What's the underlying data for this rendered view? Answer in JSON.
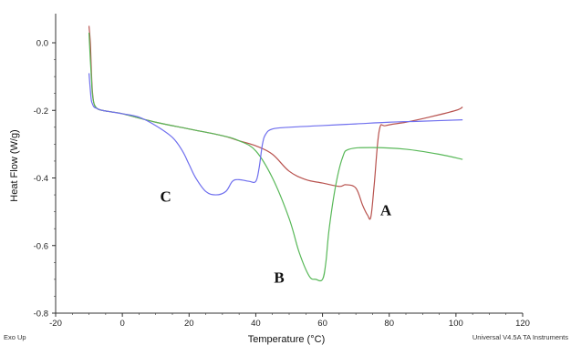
{
  "chart_data": {
    "type": "line",
    "xlabel": "Temperature (°C)",
    "ylabel": "Heat Flow (W/g)",
    "xlim": [
      -20,
      120
    ],
    "ylim": [
      -0.8,
      0.05
    ],
    "x_ticks": [
      -20,
      0,
      20,
      40,
      60,
      80,
      100,
      120
    ],
    "y_ticks": [
      0.0,
      -0.2,
      -0.4,
      -0.6,
      -0.8
    ],
    "x_tick_labels": [
      "-20",
      "0",
      "20",
      "40",
      "60",
      "80",
      "100",
      "120"
    ],
    "y_tick_labels": [
      "0.0",
      "-0.2",
      "-0.4",
      "-0.6",
      "-0.8"
    ],
    "grid": false,
    "footer_left": "Exo Up",
    "footer_right": "Universal V4.5A TA Instruments",
    "series": [
      {
        "name": "A",
        "color": "#b8524e",
        "x": [
          -10,
          -9.6,
          -9.3,
          -9,
          -8.5,
          -7.5,
          -6,
          -3,
          0,
          10,
          20,
          30,
          35,
          40,
          45,
          50,
          55,
          60,
          65,
          67,
          70,
          72,
          73.5,
          74.5,
          75.5,
          77,
          79,
          85,
          92,
          100,
          102
        ],
        "y": [
          0.05,
          0.0,
          -0.08,
          -0.14,
          -0.18,
          -0.195,
          -0.2,
          -0.205,
          -0.21,
          -0.235,
          -0.255,
          -0.275,
          -0.29,
          -0.305,
          -0.33,
          -0.38,
          -0.405,
          -0.415,
          -0.425,
          -0.42,
          -0.43,
          -0.48,
          -0.51,
          -0.515,
          -0.42,
          -0.26,
          -0.245,
          -0.235,
          -0.22,
          -0.2,
          -0.19
        ]
      },
      {
        "name": "B",
        "color": "#58b858",
        "x": [
          -10,
          -9.6,
          -9.3,
          -9,
          -8.5,
          -7.5,
          -6,
          -3,
          0,
          10,
          20,
          30,
          35,
          40,
          45,
          50,
          53,
          56,
          58,
          60,
          61,
          62,
          64,
          66,
          68,
          75,
          85,
          95,
          102
        ],
        "y": [
          0.03,
          -0.05,
          -0.1,
          -0.15,
          -0.18,
          -0.195,
          -0.2,
          -0.205,
          -0.21,
          -0.235,
          -0.255,
          -0.275,
          -0.29,
          -0.32,
          -0.4,
          -0.52,
          -0.62,
          -0.69,
          -0.7,
          -0.7,
          -0.65,
          -0.55,
          -0.42,
          -0.34,
          -0.315,
          -0.31,
          -0.315,
          -0.33,
          -0.345
        ]
      },
      {
        "name": "C",
        "color": "#6f6fee",
        "x": [
          -10,
          -9.6,
          -9.3,
          -9,
          -8.5,
          -7.5,
          -6,
          -3,
          0,
          5,
          10,
          15,
          18,
          20,
          22,
          25,
          28,
          31,
          33,
          35,
          38,
          40,
          41,
          42,
          43,
          45,
          50,
          60,
          70,
          80,
          90,
          102
        ],
        "y": [
          -0.09,
          -0.14,
          -0.17,
          -0.18,
          -0.19,
          -0.195,
          -0.2,
          -0.205,
          -0.21,
          -0.22,
          -0.245,
          -0.28,
          -0.32,
          -0.36,
          -0.4,
          -0.44,
          -0.45,
          -0.44,
          -0.41,
          -0.405,
          -0.41,
          -0.41,
          -0.37,
          -0.3,
          -0.27,
          -0.255,
          -0.25,
          -0.245,
          -0.24,
          -0.235,
          -0.232,
          -0.228
        ]
      }
    ],
    "annotations": [
      {
        "text": "A",
        "x": 79,
        "y": -0.51
      },
      {
        "text": "B",
        "x": 47,
        "y": -0.71
      },
      {
        "text": "C",
        "x": 13,
        "y": -0.47
      }
    ]
  }
}
